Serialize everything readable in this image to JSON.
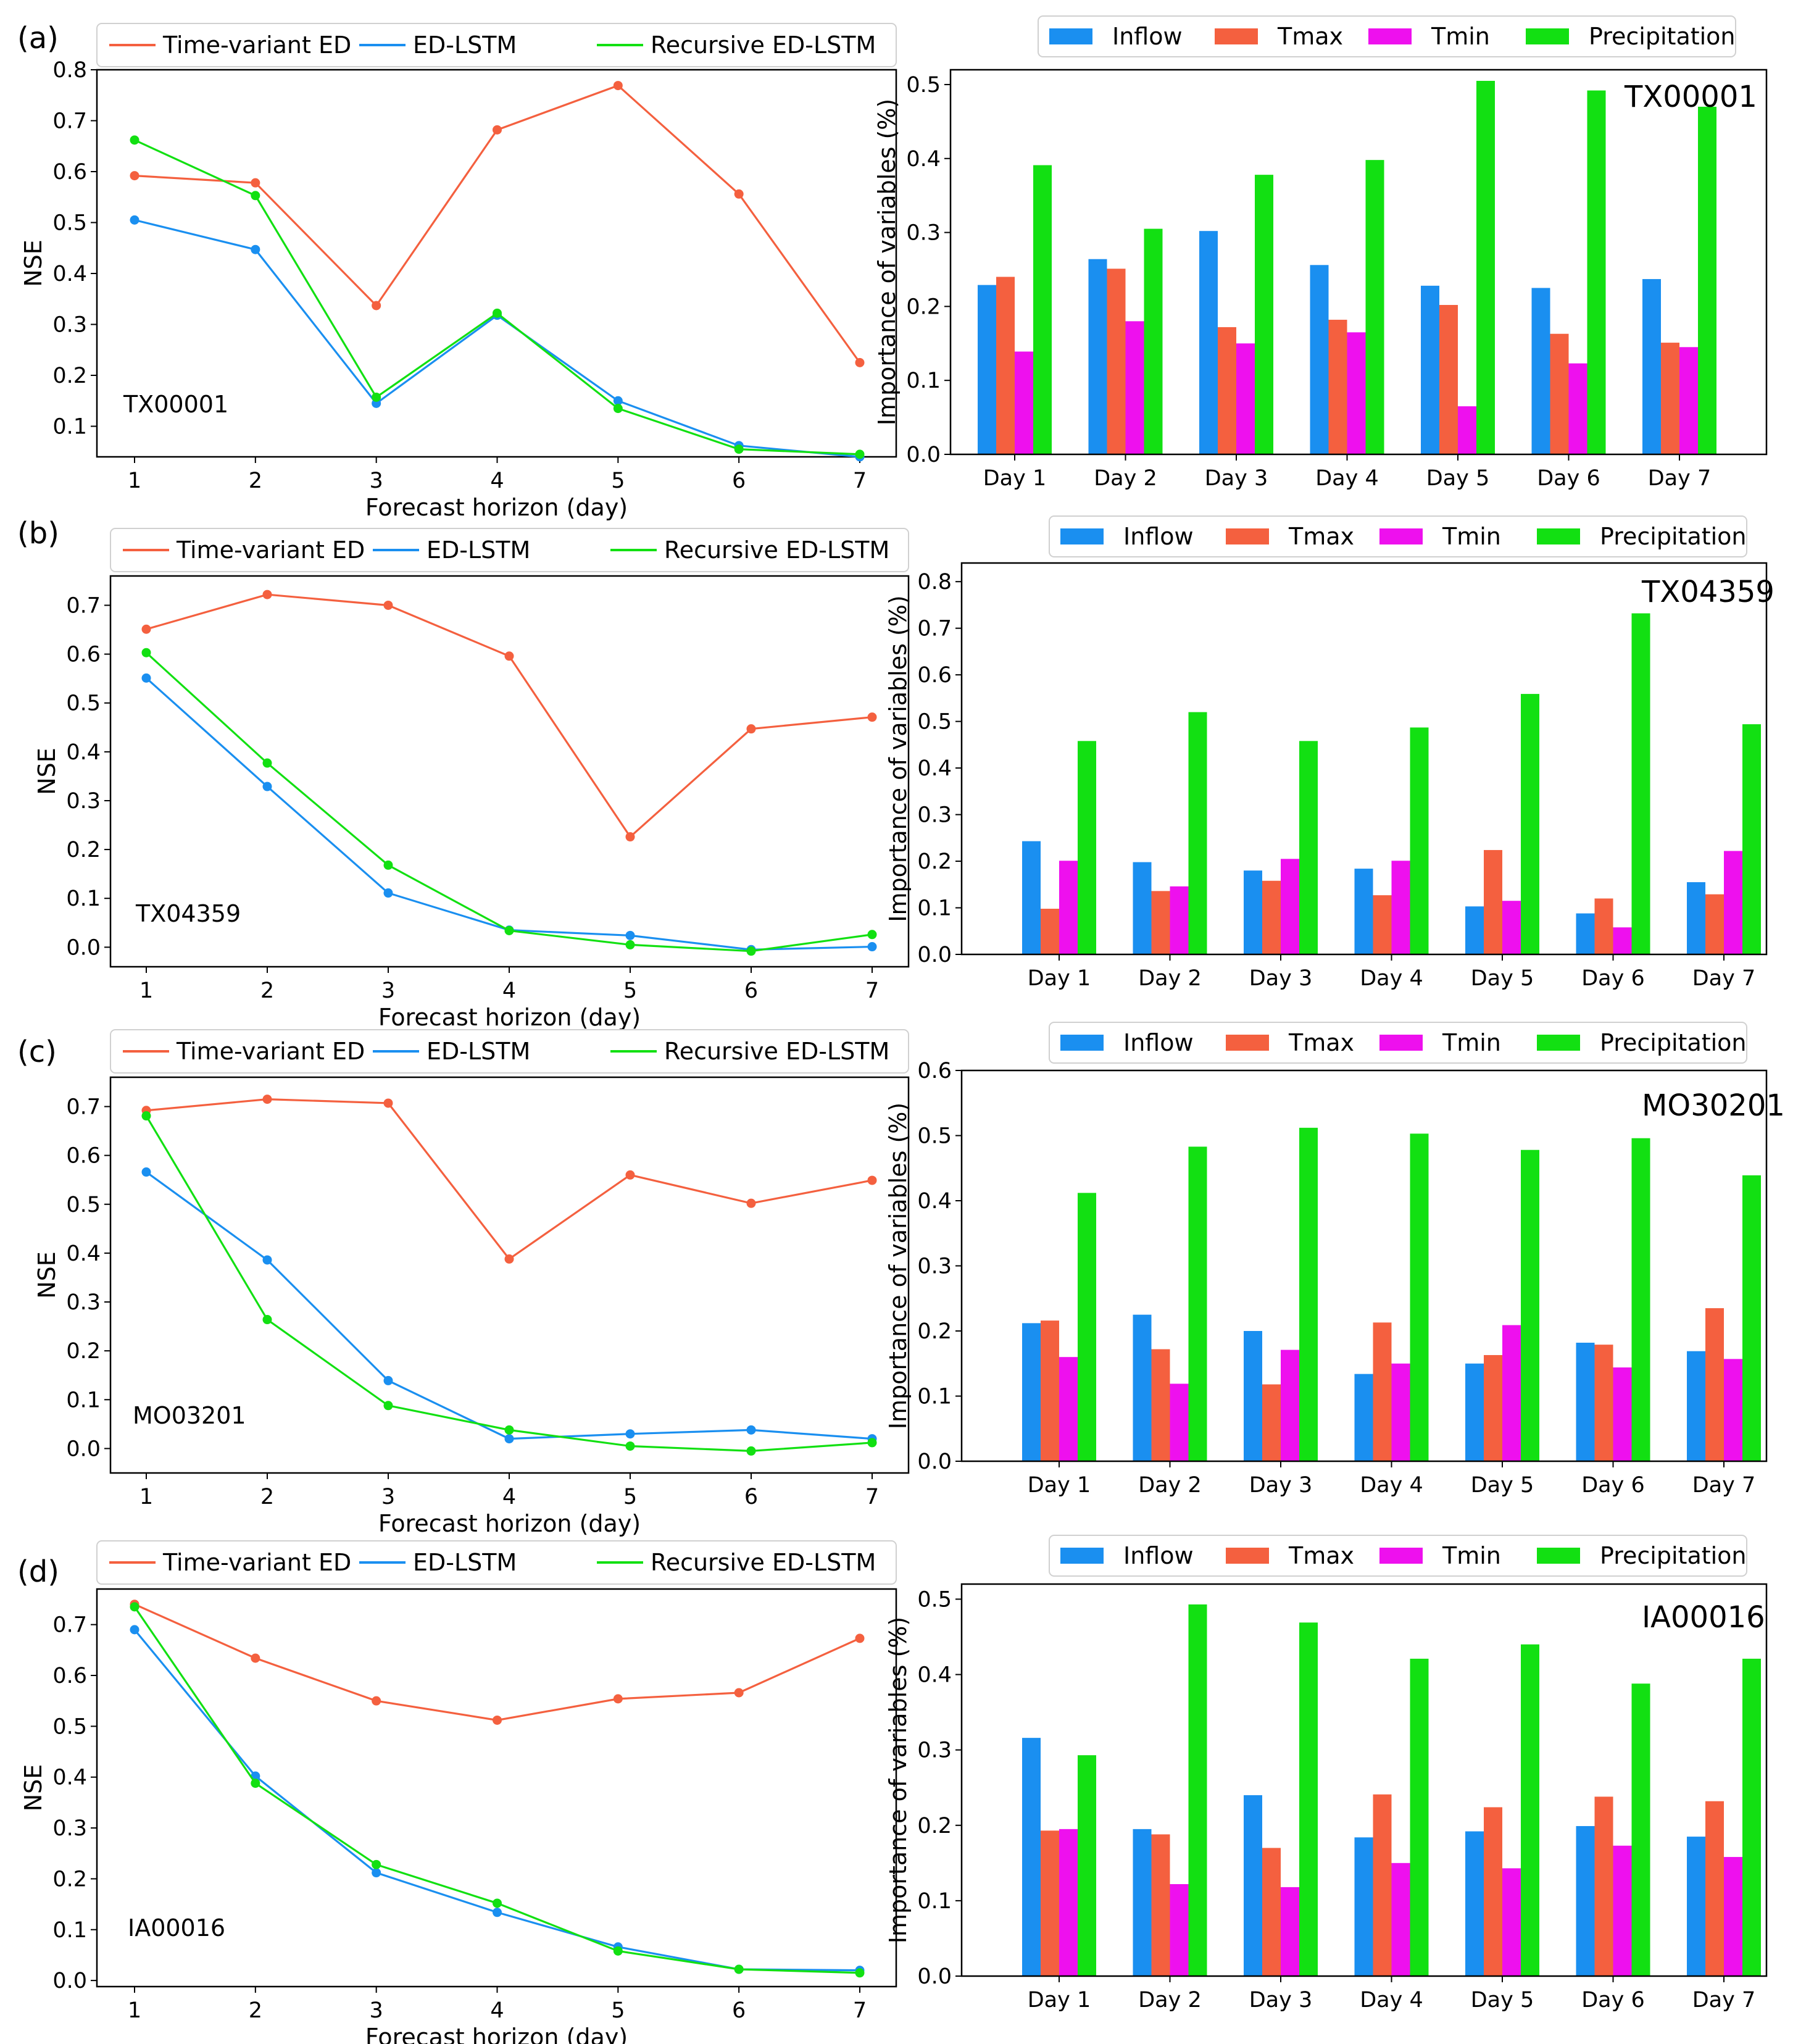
{
  "colors": {
    "time_variant_ed": "#f4603f",
    "ed_lstm": "#1a8ff0",
    "recursive_ed_lstm": "#12e012",
    "inflow": "#1a8ff0",
    "tmax": "#f4603f",
    "tmin": "#ee10ee",
    "precipitation": "#12e012"
  },
  "chart_data": [
    {
      "panel": "(a)",
      "type": "line",
      "station": "TX00001",
      "xlabel": "Forecast horizon (day)",
      "ylabel": "NSE",
      "x": [
        1,
        2,
        3,
        4,
        5,
        6,
        7
      ],
      "ylim": [
        0.04,
        0.8
      ],
      "yticks": [
        "0.1",
        "0.2",
        "0.3",
        "0.4",
        "0.5",
        "0.6",
        "0.7",
        "0.8"
      ],
      "legend": [
        "Time-variant ED",
        "ED-LSTM",
        "Recursive ED-LSTM"
      ],
      "series": [
        {
          "name": "Time-variant ED",
          "values": [
            0.592,
            0.578,
            0.337,
            0.682,
            0.769,
            0.556,
            0.225
          ]
        },
        {
          "name": "ED-LSTM",
          "values": [
            0.505,
            0.447,
            0.145,
            0.318,
            0.15,
            0.062,
            0.04
          ]
        },
        {
          "name": "Recursive ED-LSTM",
          "values": [
            0.662,
            0.553,
            0.157,
            0.322,
            0.135,
            0.055,
            0.045
          ]
        }
      ]
    },
    {
      "panel": "(a)",
      "type": "bar",
      "station": "TX00001",
      "ylabel": "Importance of variables (%)",
      "categories": [
        "Day 1",
        "Day 2",
        "Day 3",
        "Day 4",
        "Day 5",
        "Day 6",
        "Day 7"
      ],
      "ylim": [
        0,
        0.52
      ],
      "yticks": [
        "0.0",
        "0.1",
        "0.2",
        "0.3",
        "0.4",
        "0.5"
      ],
      "legend": [
        "Inflow",
        "Tmax",
        "Tmin",
        "Precipitation"
      ],
      "series": [
        {
          "name": "Inflow",
          "values": [
            0.229,
            0.264,
            0.302,
            0.256,
            0.228,
            0.225,
            0.237
          ]
        },
        {
          "name": "Tmax",
          "values": [
            0.24,
            0.251,
            0.172,
            0.182,
            0.202,
            0.163,
            0.151
          ]
        },
        {
          "name": "Tmin",
          "values": [
            0.139,
            0.18,
            0.15,
            0.165,
            0.065,
            0.123,
            0.145
          ]
        },
        {
          "name": "Precipitation",
          "values": [
            0.391,
            0.305,
            0.378,
            0.398,
            0.505,
            0.492,
            0.47
          ]
        }
      ]
    },
    {
      "panel": "(b)",
      "type": "line",
      "station": "TX04359",
      "xlabel": "Forecast horizon (day)",
      "ylabel": "NSE",
      "x": [
        1,
        2,
        3,
        4,
        5,
        6,
        7
      ],
      "ylim": [
        -0.04,
        0.76
      ],
      "yticks": [
        "0.0",
        "0.1",
        "0.2",
        "0.3",
        "0.4",
        "0.5",
        "0.6",
        "0.7"
      ],
      "legend": [
        "Time-variant ED",
        "ED-LSTM",
        "Recursive ED-LSTM"
      ],
      "series": [
        {
          "name": "Time-variant ED",
          "values": [
            0.651,
            0.722,
            0.7,
            0.596,
            0.226,
            0.447,
            0.471
          ]
        },
        {
          "name": "ED-LSTM",
          "values": [
            0.551,
            0.329,
            0.111,
            0.035,
            0.024,
            -0.005,
            0.001
          ]
        },
        {
          "name": "Recursive ED-LSTM",
          "values": [
            0.603,
            0.377,
            0.168,
            0.034,
            0.005,
            -0.008,
            0.026
          ]
        }
      ]
    },
    {
      "panel": "(b)",
      "type": "bar",
      "station": "TX04359",
      "ylabel": "Importance of variables (%)",
      "categories": [
        "Day 1",
        "Day 2",
        "Day 3",
        "Day 4",
        "Day 5",
        "Day 6",
        "Day 7"
      ],
      "ylim": [
        0,
        0.84
      ],
      "yticks": [
        "0.0",
        "0.1",
        "0.2",
        "0.3",
        "0.4",
        "0.5",
        "0.6",
        "0.7",
        "0.8"
      ],
      "legend": [
        "Inflow",
        "Tmax",
        "Tmin",
        "Precipitation"
      ],
      "series": [
        {
          "name": "Inflow",
          "values": [
            0.243,
            0.198,
            0.18,
            0.184,
            0.103,
            0.088,
            0.155
          ]
        },
        {
          "name": "Tmax",
          "values": [
            0.098,
            0.136,
            0.158,
            0.127,
            0.224,
            0.12,
            0.129
          ]
        },
        {
          "name": "Tmin",
          "values": [
            0.201,
            0.146,
            0.205,
            0.201,
            0.115,
            0.058,
            0.222
          ]
        },
        {
          "name": "Precipitation",
          "values": [
            0.458,
            0.52,
            0.458,
            0.487,
            0.559,
            0.732,
            0.494
          ]
        }
      ]
    },
    {
      "panel": "(c)",
      "type": "line",
      "station": "MO03201",
      "xlabel": "Forecast horizon (day)",
      "ylabel": "NSE",
      "x": [
        1,
        2,
        3,
        4,
        5,
        6,
        7
      ],
      "ylim": [
        -0.05,
        0.76
      ],
      "yticks": [
        "0.0",
        "0.1",
        "0.2",
        "0.3",
        "0.4",
        "0.5",
        "0.6",
        "0.7"
      ],
      "legend": [
        "Time-variant ED",
        "ED-LSTM",
        "Recursive ED-LSTM"
      ],
      "series": [
        {
          "name": "Time-variant ED",
          "values": [
            0.692,
            0.715,
            0.707,
            0.388,
            0.56,
            0.502,
            0.549
          ]
        },
        {
          "name": "ED-LSTM",
          "values": [
            0.566,
            0.386,
            0.139,
            0.02,
            0.03,
            0.038,
            0.02
          ]
        },
        {
          "name": "Recursive ED-LSTM",
          "values": [
            0.681,
            0.264,
            0.088,
            0.038,
            0.005,
            -0.005,
            0.012
          ]
        }
      ]
    },
    {
      "panel": "(c)",
      "type": "bar",
      "station": "MO30201",
      "ylabel": "Importance of variables (%)",
      "categories": [
        "Day 1",
        "Day 2",
        "Day 3",
        "Day 4",
        "Day 5",
        "Day 6",
        "Day 7"
      ],
      "ylim": [
        0,
        0.6
      ],
      "yticks": [
        "0.0",
        "0.1",
        "0.2",
        "0.3",
        "0.4",
        "0.5",
        "0.6"
      ],
      "legend": [
        "Inflow",
        "Tmax",
        "Tmin",
        "Precipitation"
      ],
      "series": [
        {
          "name": "Inflow",
          "values": [
            0.212,
            0.225,
            0.2,
            0.134,
            0.15,
            0.182,
            0.169
          ]
        },
        {
          "name": "Tmax",
          "values": [
            0.216,
            0.172,
            0.118,
            0.213,
            0.163,
            0.179,
            0.235
          ]
        },
        {
          "name": "Tmin",
          "values": [
            0.16,
            0.119,
            0.171,
            0.15,
            0.209,
            0.144,
            0.157
          ]
        },
        {
          "name": "Precipitation",
          "values": [
            0.412,
            0.483,
            0.512,
            0.503,
            0.478,
            0.496,
            0.439
          ]
        }
      ]
    },
    {
      "panel": "(d)",
      "type": "line",
      "station": "IA00016",
      "xlabel": "Forecast horizon (day)",
      "ylabel": "NSE",
      "x": [
        1,
        2,
        3,
        4,
        5,
        6,
        7
      ],
      "ylim": [
        -0.012,
        0.77
      ],
      "yticks": [
        "0.0",
        "0.1",
        "0.2",
        "0.3",
        "0.4",
        "0.5",
        "0.6",
        "0.7"
      ],
      "legend": [
        "Time-variant ED",
        "ED-LSTM",
        "Recursive ED-LSTM"
      ],
      "series": [
        {
          "name": "Time-variant ED",
          "values": [
            0.74,
            0.634,
            0.55,
            0.512,
            0.554,
            0.566,
            0.673
          ]
        },
        {
          "name": "ED-LSTM",
          "values": [
            0.69,
            0.402,
            0.212,
            0.134,
            0.066,
            0.022,
            0.02
          ]
        },
        {
          "name": "Recursive ED-LSTM",
          "values": [
            0.735,
            0.388,
            0.228,
            0.152,
            0.058,
            0.022,
            0.015
          ]
        }
      ]
    },
    {
      "panel": "(d)",
      "type": "bar",
      "station": "IA00016",
      "ylabel": "Importance of variables (%)",
      "categories": [
        "Day 1",
        "Day 2",
        "Day 3",
        "Day 4",
        "Day 5",
        "Day 6",
        "Day 7"
      ],
      "ylim": [
        0,
        0.52
      ],
      "yticks": [
        "0.0",
        "0.1",
        "0.2",
        "0.3",
        "0.4",
        "0.5"
      ],
      "legend": [
        "Inflow",
        "Tmax",
        "Tmin",
        "Precipitation"
      ],
      "series": [
        {
          "name": "Inflow",
          "values": [
            0.316,
            0.195,
            0.24,
            0.184,
            0.192,
            0.199,
            0.185
          ]
        },
        {
          "name": "Tmax",
          "values": [
            0.193,
            0.188,
            0.17,
            0.241,
            0.224,
            0.238,
            0.232
          ]
        },
        {
          "name": "Tmin",
          "values": [
            0.195,
            0.122,
            0.118,
            0.15,
            0.143,
            0.173,
            0.158
          ]
        },
        {
          "name": "Precipitation",
          "values": [
            0.293,
            0.493,
            0.469,
            0.421,
            0.44,
            0.388,
            0.421
          ]
        }
      ]
    }
  ]
}
